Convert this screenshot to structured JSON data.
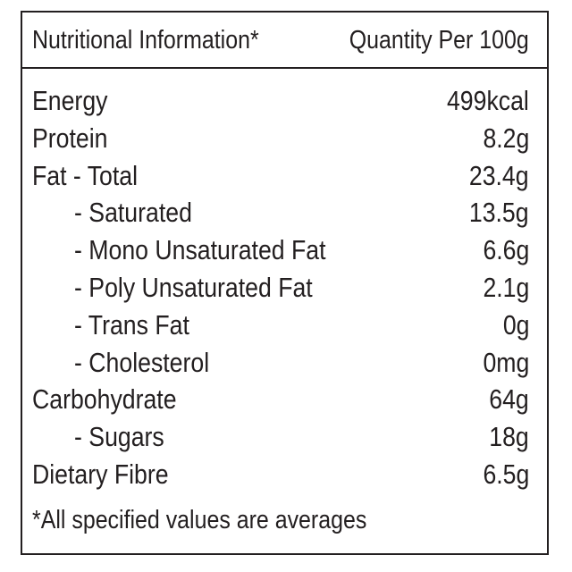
{
  "header": {
    "title": "Nutritional Information*",
    "quantity_label": "Quantity Per 100g"
  },
  "rows": [
    {
      "name": "Energy",
      "value": "499kcal",
      "indent": false
    },
    {
      "name": "Protein",
      "value": "8.2g",
      "indent": false
    },
    {
      "name": "Fat - Total",
      "value": "23.4g",
      "indent": false
    },
    {
      "name": "- Saturated",
      "value": "13.5g",
      "indent": true
    },
    {
      "name": "- Mono Unsaturated Fat",
      "value": "6.6g",
      "indent": true
    },
    {
      "name": "- Poly Unsaturated Fat",
      "value": "2.1g",
      "indent": true
    },
    {
      "name": "- Trans Fat",
      "value": "0g",
      "indent": true
    },
    {
      "name": "- Cholesterol",
      "value": "0mg",
      "indent": true
    },
    {
      "name": "Carbohydrate",
      "value": "64g",
      "indent": false
    },
    {
      "name": "- Sugars",
      "value": "18g",
      "indent": true
    },
    {
      "name": "Dietary Fibre",
      "value": "6.5g",
      "indent": false
    }
  ],
  "footnote": "*All specified values are averages",
  "colors": {
    "text": "#231f20",
    "border": "#231f20",
    "background": "#ffffff"
  }
}
